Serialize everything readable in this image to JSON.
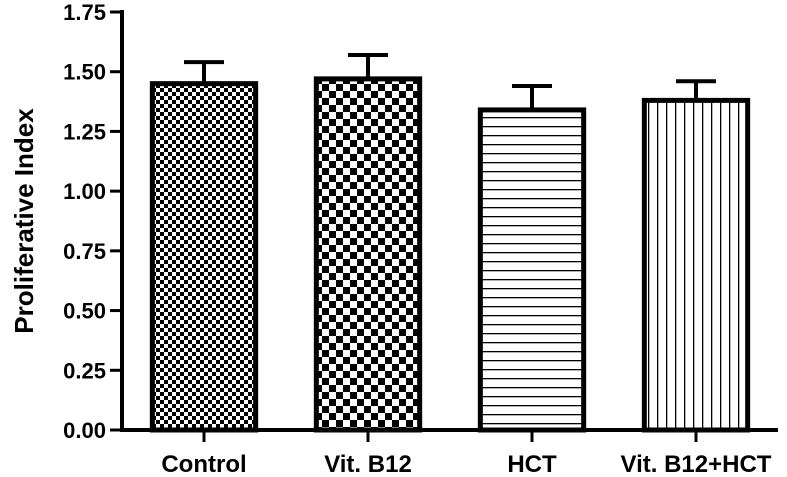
{
  "chart_data": {
    "type": "bar",
    "title": "",
    "xlabel": "",
    "ylabel": "Proliferative Index",
    "ylim": [
      0,
      1.75
    ],
    "yticks": [
      "0.00",
      "0.25",
      "0.50",
      "0.75",
      "1.00",
      "1.25",
      "1.50",
      "1.75"
    ],
    "categories": [
      "Control",
      "Vit. B12",
      "HCT",
      "Vit. B12+HCT"
    ],
    "values": [
      1.45,
      1.47,
      1.34,
      1.38
    ],
    "errors": [
      0.09,
      0.1,
      0.1,
      0.08
    ],
    "patterns": [
      "fine-checker",
      "coarse-checker",
      "horizontal-lines",
      "vertical-lines"
    ],
    "grid": false,
    "colors": {
      "bar_stroke": "#000000",
      "pattern_ink": "#000000",
      "background": "#ffffff"
    }
  }
}
